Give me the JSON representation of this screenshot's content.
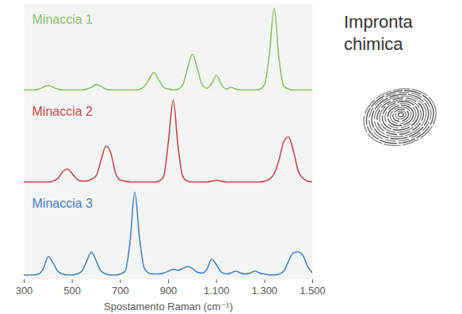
{
  "chart_data": {
    "type": "line",
    "annotation": "Impronta chimica",
    "x_label": "Spostamento Raman (cm⁻¹)",
    "x": [
      300,
      320,
      340,
      360,
      380,
      400,
      420,
      440,
      460,
      480,
      500,
      520,
      540,
      560,
      580,
      600,
      620,
      640,
      660,
      680,
      700,
      720,
      740,
      760,
      780,
      800,
      820,
      840,
      860,
      880,
      900,
      920,
      940,
      960,
      980,
      1000,
      1020,
      1040,
      1060,
      1080,
      1100,
      1120,
      1140,
      1160,
      1180,
      1200,
      1220,
      1240,
      1260,
      1280,
      1300,
      1320,
      1340,
      1360,
      1380,
      1400,
      1420,
      1440,
      1460,
      1480,
      1500
    ],
    "series": [
      {
        "name": "Minaccia 1",
        "color": "#8fbf6b",
        "values": [
          0.06,
          0.06,
          0.06,
          0.07,
          0.09,
          0.11,
          0.09,
          0.07,
          0.06,
          0.06,
          0.06,
          0.06,
          0.06,
          0.07,
          0.09,
          0.12,
          0.1,
          0.07,
          0.06,
          0.06,
          0.06,
          0.06,
          0.06,
          0.06,
          0.07,
          0.1,
          0.18,
          0.25,
          0.17,
          0.09,
          0.07,
          0.06,
          0.07,
          0.12,
          0.3,
          0.45,
          0.3,
          0.12,
          0.08,
          0.13,
          0.22,
          0.12,
          0.07,
          0.09,
          0.07,
          0.06,
          0.06,
          0.06,
          0.06,
          0.07,
          0.12,
          0.45,
          0.95,
          0.4,
          0.1,
          0.07,
          0.06,
          0.06,
          0.06,
          0.06,
          0.06
        ]
      },
      {
        "name": "Minaccia 2",
        "color": "#c4484a",
        "values": [
          0.06,
          0.06,
          0.06,
          0.06,
          0.06,
          0.06,
          0.07,
          0.1,
          0.17,
          0.2,
          0.15,
          0.09,
          0.07,
          0.07,
          0.09,
          0.13,
          0.3,
          0.45,
          0.38,
          0.16,
          0.08,
          0.07,
          0.06,
          0.06,
          0.06,
          0.06,
          0.06,
          0.06,
          0.07,
          0.12,
          0.5,
          0.95,
          0.45,
          0.12,
          0.07,
          0.06,
          0.06,
          0.06,
          0.06,
          0.07,
          0.08,
          0.07,
          0.06,
          0.06,
          0.06,
          0.06,
          0.06,
          0.06,
          0.06,
          0.06,
          0.07,
          0.09,
          0.15,
          0.3,
          0.5,
          0.55,
          0.4,
          0.18,
          0.1,
          0.07,
          0.06
        ]
      },
      {
        "name": "Minaccia 3",
        "color": "#4a80c2",
        "values": [
          0.05,
          0.05,
          0.05,
          0.06,
          0.12,
          0.25,
          0.18,
          0.09,
          0.06,
          0.05,
          0.05,
          0.06,
          0.09,
          0.2,
          0.3,
          0.2,
          0.09,
          0.06,
          0.05,
          0.05,
          0.06,
          0.09,
          0.4,
          0.95,
          0.45,
          0.12,
          0.07,
          0.06,
          0.06,
          0.07,
          0.09,
          0.11,
          0.1,
          0.12,
          0.14,
          0.12,
          0.08,
          0.07,
          0.11,
          0.22,
          0.16,
          0.08,
          0.06,
          0.07,
          0.09,
          0.07,
          0.06,
          0.07,
          0.09,
          0.07,
          0.06,
          0.05,
          0.05,
          0.06,
          0.09,
          0.2,
          0.29,
          0.3,
          0.26,
          0.14,
          0.07
        ]
      }
    ],
    "xlim": [
      300,
      1500
    ],
    "xticks": [
      300,
      500,
      700,
      900,
      {
        "value": 1100,
        "label": "1.100"
      },
      {
        "value": 1300,
        "label": "1.300"
      },
      {
        "value": 1500,
        "label": "1.500"
      }
    ],
    "ylim": [
      0,
      1
    ],
    "tick_labels": "x"
  }
}
